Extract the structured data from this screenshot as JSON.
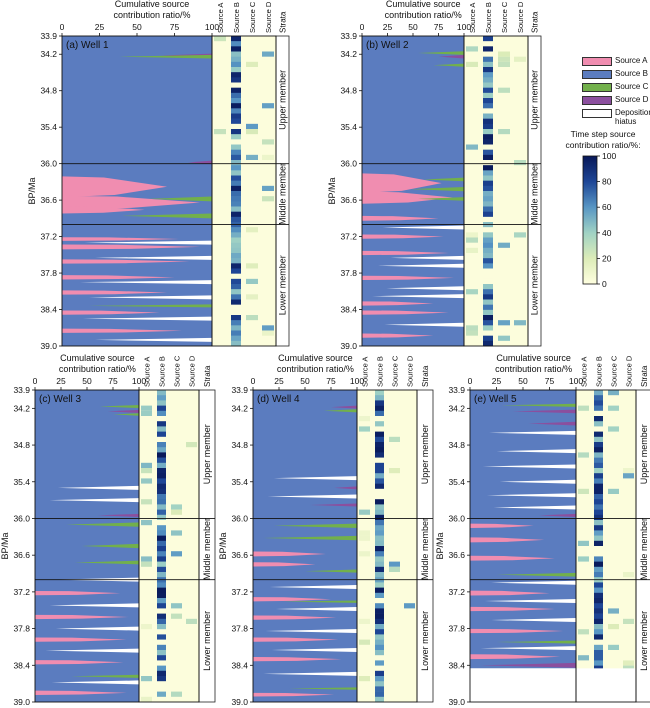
{
  "chart_data": {
    "type": "area",
    "y_axis": {
      "label": "BP/Ma",
      "ticks": [
        33.9,
        34.2,
        34.8,
        35.4,
        36.0,
        36.6,
        37.2,
        37.8,
        38.4,
        39.0
      ],
      "ylim": [
        33.9,
        39.0
      ]
    },
    "x_axis": {
      "label": "Cumulative source contribution ratio/%",
      "ticks": [
        0,
        25,
        50,
        75,
        100
      ]
    },
    "heatmap_columns": [
      "Source A",
      "Source B",
      "Source C",
      "Source D"
    ],
    "strata_label": "Strata",
    "members": [
      {
        "name": "Upper member",
        "range": [
          33.9,
          36.0
        ]
      },
      {
        "name": "Middle member",
        "range": [
          36.0,
          37.0
        ]
      },
      {
        "name": "Lower member",
        "range": [
          37.0,
          39.0
        ]
      }
    ],
    "legend": [
      {
        "name": "Source A",
        "color": "#f08db0"
      },
      {
        "name": "Source B",
        "color": "#5b7cbf"
      },
      {
        "name": "Source C",
        "color": "#72b04b"
      },
      {
        "name": "Source D",
        "color": "#8b4f9e"
      },
      {
        "name": "Depositional hiatus",
        "color": "#ffffff"
      }
    ],
    "colorbar": {
      "title": "Time step source contribution ratio/%:",
      "ticks": [
        0,
        20,
        40,
        60,
        80,
        100
      ],
      "range": [
        0,
        100
      ]
    },
    "panels": [
      {
        "title": "(a) Well 1",
        "hiatus_end": 39.0,
        "wedges": [
          {
            "s": "D",
            "y": 34.22,
            "w": 34,
            "h": 0.06
          },
          {
            "s": "C",
            "y": 34.24,
            "w": 62,
            "h": 0.06
          },
          {
            "s": "D",
            "y": 35.98,
            "w": 16,
            "h": 0.06
          },
          {
            "s": "A",
            "y": 36.38,
            "w": 70,
            "h": 0.34
          },
          {
            "s": "A",
            "y": 36.64,
            "w": 92,
            "h": 0.22
          },
          {
            "s": "A",
            "y": 36.76,
            "w": 55,
            "h": 0.12
          },
          {
            "s": "C",
            "y": 36.58,
            "w": 42,
            "h": 0.08
          },
          {
            "s": "C",
            "y": 36.86,
            "w": 60,
            "h": 0.08
          },
          {
            "s": "A",
            "y": 37.24,
            "w": 78,
            "h": 0.06
          },
          {
            "s": "A",
            "y": 37.37,
            "w": 92,
            "h": 0.08
          },
          {
            "s": "A",
            "y": 37.61,
            "w": 85,
            "h": 0.07
          },
          {
            "s": "A",
            "y": 37.87,
            "w": 75,
            "h": 0.07
          },
          {
            "s": "A",
            "y": 38.12,
            "w": 70,
            "h": 0.07
          },
          {
            "s": "C",
            "y": 38.34,
            "w": 82,
            "h": 0.05
          },
          {
            "s": "A",
            "y": 38.45,
            "w": 65,
            "h": 0.07
          },
          {
            "s": "A",
            "y": 38.75,
            "w": 80,
            "h": 0.07
          }
        ],
        "hiatus": [
          {
            "y": 37.3,
            "w": 85,
            "h": 0.05
          },
          {
            "y": 37.55,
            "w": 78,
            "h": 0.05
          },
          {
            "y": 37.95,
            "w": 88,
            "h": 0.05
          },
          {
            "y": 38.2,
            "w": 82,
            "h": 0.05
          },
          {
            "y": 38.55,
            "w": 86,
            "h": 0.05
          },
          {
            "y": 38.9,
            "w": 78,
            "h": 0.05
          }
        ]
      },
      {
        "title": "(b) Well 2",
        "hiatus_end": 39.0,
        "wedges": [
          {
            "s": "C",
            "y": 34.18,
            "w": 45,
            "h": 0.06
          },
          {
            "s": "D",
            "y": 34.24,
            "w": 25,
            "h": 0.06
          },
          {
            "s": "C",
            "y": 34.38,
            "w": 30,
            "h": 0.05
          },
          {
            "s": "A",
            "y": 36.32,
            "w": 78,
            "h": 0.32
          },
          {
            "s": "A",
            "y": 36.56,
            "w": 90,
            "h": 0.2
          },
          {
            "s": "C",
            "y": 36.26,
            "w": 40,
            "h": 0.06
          },
          {
            "s": "C",
            "y": 36.42,
            "w": 52,
            "h": 0.07
          },
          {
            "s": "C",
            "y": 36.58,
            "w": 45,
            "h": 0.06
          },
          {
            "s": "A",
            "y": 36.9,
            "w": 75,
            "h": 0.08
          },
          {
            "s": "A",
            "y": 37.2,
            "w": 80,
            "h": 0.07
          },
          {
            "s": "A",
            "y": 37.47,
            "w": 85,
            "h": 0.07
          },
          {
            "s": "A",
            "y": 37.88,
            "w": 90,
            "h": 0.07
          },
          {
            "s": "A",
            "y": 38.3,
            "w": 70,
            "h": 0.07
          },
          {
            "s": "A",
            "y": 38.45,
            "w": 85,
            "h": 0.07
          },
          {
            "s": "A",
            "y": 38.83,
            "w": 70,
            "h": 0.07
          }
        ],
        "hiatus": [
          {
            "y": 37.05,
            "w": 80,
            "h": 0.05
          },
          {
            "y": 37.55,
            "w": 72,
            "h": 0.05
          },
          {
            "y": 37.68,
            "w": 84,
            "h": 0.05
          },
          {
            "y": 38.05,
            "w": 76,
            "h": 0.05
          },
          {
            "y": 38.18,
            "w": 90,
            "h": 0.05
          },
          {
            "y": 38.65,
            "w": 78,
            "h": 0.05
          }
        ]
      },
      {
        "title": "(c) Well 3",
        "hiatus_end": 39.0,
        "wedges": [
          {
            "s": "C",
            "y": 34.17,
            "w": 38,
            "h": 0.05
          },
          {
            "s": "D",
            "y": 34.25,
            "w": 30,
            "h": 0.05
          },
          {
            "s": "C",
            "y": 34.3,
            "w": 25,
            "h": 0.04
          },
          {
            "s": "D",
            "y": 35.95,
            "w": 40,
            "h": 0.05
          },
          {
            "s": "C",
            "y": 36.1,
            "w": 70,
            "h": 0.07
          },
          {
            "s": "C",
            "y": 36.45,
            "w": 55,
            "h": 0.07
          },
          {
            "s": "C",
            "y": 36.72,
            "w": 62,
            "h": 0.06
          },
          {
            "s": "A",
            "y": 37.22,
            "w": 82,
            "h": 0.07
          },
          {
            "s": "A",
            "y": 37.61,
            "w": 90,
            "h": 0.07
          },
          {
            "s": "A",
            "y": 37.98,
            "w": 88,
            "h": 0.07
          },
          {
            "s": "A",
            "y": 38.35,
            "w": 85,
            "h": 0.07
          },
          {
            "s": "C",
            "y": 38.58,
            "w": 65,
            "h": 0.05
          },
          {
            "s": "A",
            "y": 38.85,
            "w": 88,
            "h": 0.07
          }
        ],
        "hiatus": [
          {
            "y": 35.5,
            "w": 78,
            "h": 0.05
          },
          {
            "y": 35.7,
            "w": 86,
            "h": 0.05
          },
          {
            "y": 37.0,
            "w": 82,
            "h": 0.05
          },
          {
            "y": 37.42,
            "w": 86,
            "h": 0.05
          },
          {
            "y": 37.8,
            "w": 80,
            "h": 0.05
          },
          {
            "y": 38.16,
            "w": 90,
            "h": 0.05
          },
          {
            "y": 38.68,
            "w": 84,
            "h": 0.05
          }
        ]
      },
      {
        "title": "(d) Well 4",
        "hiatus_end": 39.0,
        "wedges": [
          {
            "s": "D",
            "y": 34.18,
            "w": 25,
            "h": 0.05
          },
          {
            "s": "C",
            "y": 34.24,
            "w": 32,
            "h": 0.05
          },
          {
            "s": "D",
            "y": 35.5,
            "w": 22,
            "h": 0.05
          },
          {
            "s": "D",
            "y": 35.78,
            "w": 45,
            "h": 0.05
          },
          {
            "s": "C",
            "y": 36.12,
            "w": 80,
            "h": 0.07
          },
          {
            "s": "C",
            "y": 36.32,
            "w": 90,
            "h": 0.07
          },
          {
            "s": "A",
            "y": 36.58,
            "w": 70,
            "h": 0.08
          },
          {
            "s": "A",
            "y": 36.75,
            "w": 60,
            "h": 0.07
          },
          {
            "s": "C",
            "y": 36.86,
            "w": 50,
            "h": 0.05
          },
          {
            "s": "A",
            "y": 37.32,
            "w": 75,
            "h": 0.07
          },
          {
            "s": "C",
            "y": 37.36,
            "w": 72,
            "h": 0.04
          },
          {
            "s": "A",
            "y": 37.62,
            "w": 80,
            "h": 0.07
          },
          {
            "s": "A",
            "y": 37.98,
            "w": 82,
            "h": 0.07
          },
          {
            "s": "A",
            "y": 38.3,
            "w": 85,
            "h": 0.07
          },
          {
            "s": "C",
            "y": 38.78,
            "w": 65,
            "h": 0.04
          },
          {
            "s": "A",
            "y": 38.88,
            "w": 78,
            "h": 0.06
          }
        ],
        "hiatus": [
          {
            "y": 35.34,
            "w": 80,
            "h": 0.05
          },
          {
            "y": 35.64,
            "w": 86,
            "h": 0.05
          },
          {
            "y": 37.12,
            "w": 84,
            "h": 0.05
          },
          {
            "y": 37.48,
            "w": 78,
            "h": 0.05
          },
          {
            "y": 37.84,
            "w": 88,
            "h": 0.05
          },
          {
            "y": 38.15,
            "w": 82,
            "h": 0.05
          },
          {
            "y": 38.54,
            "w": 90,
            "h": 0.05
          }
        ]
      },
      {
        "title": "(e) Well 5",
        "hiatus_end": 38.45,
        "wedges": [
          {
            "s": "C",
            "y": 34.15,
            "w": 70,
            "h": 0.05
          },
          {
            "s": "D",
            "y": 34.25,
            "w": 60,
            "h": 0.06
          },
          {
            "s": "D",
            "y": 34.45,
            "w": 45,
            "h": 0.06
          },
          {
            "s": "D",
            "y": 35.95,
            "w": 35,
            "h": 0.05
          },
          {
            "s": "A",
            "y": 36.12,
            "w": 60,
            "h": 0.07
          },
          {
            "s": "A",
            "y": 36.35,
            "w": 70,
            "h": 0.08
          },
          {
            "s": "A",
            "y": 36.65,
            "w": 80,
            "h": 0.08
          },
          {
            "s": "C",
            "y": 36.92,
            "w": 75,
            "h": 0.06
          },
          {
            "s": "A",
            "y": 37.22,
            "w": 75,
            "h": 0.08
          },
          {
            "s": "A",
            "y": 37.48,
            "w": 80,
            "h": 0.07
          },
          {
            "s": "A",
            "y": 37.84,
            "w": 88,
            "h": 0.07
          },
          {
            "s": "C",
            "y": 38.02,
            "w": 75,
            "h": 0.05
          },
          {
            "s": "A",
            "y": 38.26,
            "w": 85,
            "h": 0.08
          },
          {
            "s": "D",
            "y": 38.4,
            "w": 90,
            "h": 0.08
          }
        ],
        "hiatus": [
          {
            "y": 34.6,
            "w": 82,
            "h": 0.05
          },
          {
            "y": 34.9,
            "w": 75,
            "h": 0.05
          },
          {
            "y": 35.15,
            "w": 88,
            "h": 0.05
          },
          {
            "y": 35.4,
            "w": 72,
            "h": 0.05
          },
          {
            "y": 35.62,
            "w": 84,
            "h": 0.05
          },
          {
            "y": 35.82,
            "w": 78,
            "h": 0.05
          },
          {
            "y": 37.05,
            "w": 80,
            "h": 0.05
          },
          {
            "y": 37.35,
            "w": 86,
            "h": 0.05
          },
          {
            "y": 37.66,
            "w": 80,
            "h": 0.05
          },
          {
            "y": 38.12,
            "w": 90,
            "h": 0.05
          }
        ]
      }
    ]
  }
}
